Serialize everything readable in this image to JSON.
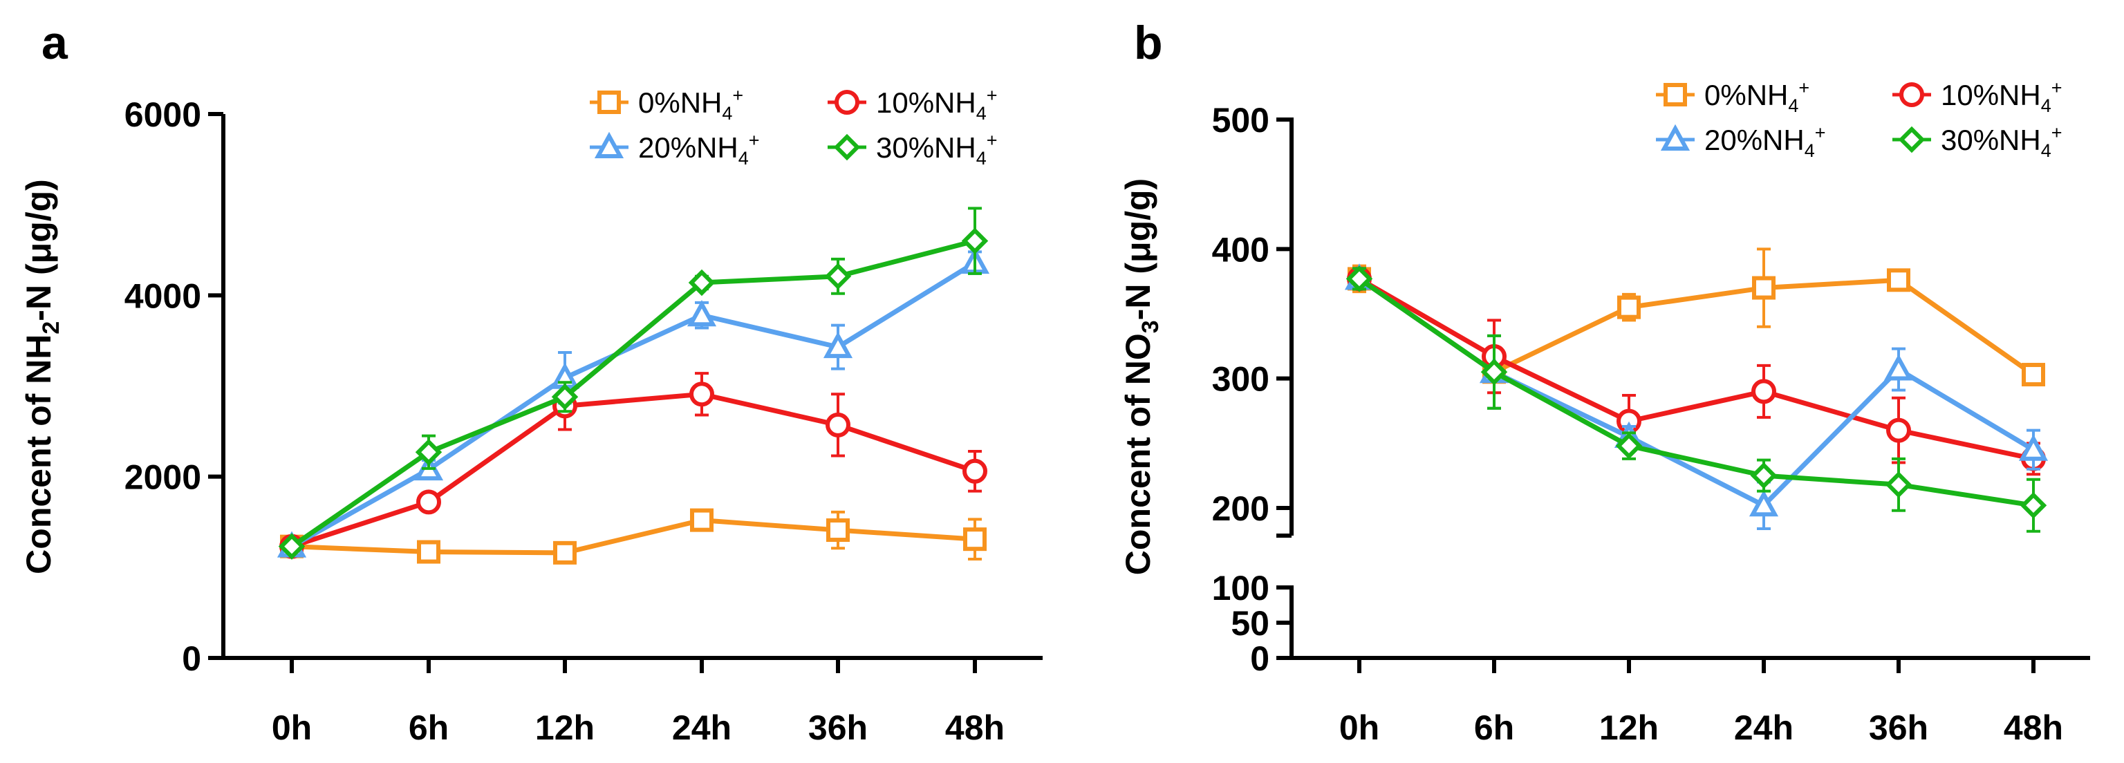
{
  "colors": {
    "0%NH4+": "#f7931e",
    "10%NH4+": "#ee1c1c",
    "20%NH4+": "#5aa2ef",
    "30%NH4+": "#18b418"
  },
  "legend_labels": {
    "s0": {
      "pre": "0%NH",
      "sub": "4",
      "sup": "+"
    },
    "s10": {
      "pre": "10%NH",
      "sub": "4",
      "sup": "+"
    },
    "s20": {
      "pre": "20%NH",
      "sub": "4",
      "sup": "+"
    },
    "s30": {
      "pre": "30%NH",
      "sub": "4",
      "sup": "+"
    }
  },
  "chart_data": [
    {
      "type": "line",
      "panel": "a",
      "ylabel": {
        "pre": "Concent of NH",
        "sub": "2",
        "post": "-N (μg/g)"
      },
      "categories": [
        "0h",
        "6h",
        "12h",
        "24h",
        "36h",
        "48h"
      ],
      "ylim": [
        0,
        6000
      ],
      "yticks": [
        "0",
        "2000",
        "4000",
        "6000"
      ],
      "legend_position": "top-right",
      "series": [
        {
          "name": "0%NH4+",
          "marker": "square",
          "values": [
            1230,
            1170,
            1160,
            1520,
            1410,
            1310
          ],
          "errors": [
            60,
            80,
            70,
            80,
            200,
            220
          ]
        },
        {
          "name": "10%NH4+",
          "marker": "circle",
          "values": [
            1230,
            1720,
            2780,
            2910,
            2570,
            2060
          ],
          "errors": [
            50,
            100,
            260,
            230,
            340,
            220
          ]
        },
        {
          "name": "20%NH4+",
          "marker": "triangle",
          "values": [
            1230,
            2080,
            3090,
            3780,
            3430,
            4360
          ],
          "errors": [
            50,
            100,
            280,
            140,
            240,
            120
          ]
        },
        {
          "name": "30%NH4+",
          "marker": "diamond",
          "values": [
            1230,
            2270,
            2880,
            4140,
            4210,
            4600
          ],
          "errors": [
            50,
            180,
            160,
            70,
            190,
            360
          ]
        }
      ]
    },
    {
      "type": "line",
      "panel": "b",
      "ylabel": {
        "pre": "Concent of NO",
        "sub": "3",
        "post": "-N (μg/g)"
      },
      "categories": [
        "0h",
        "6h",
        "12h",
        "24h",
        "36h",
        "48h"
      ],
      "axis_break": {
        "lower": [
          0,
          100
        ],
        "upper": [
          190,
          500
        ]
      },
      "yticks_lower": [
        "0",
        "50",
        "100"
      ],
      "yticks_upper": [
        "200",
        "300",
        "400",
        "500"
      ],
      "legend_position": "top-right",
      "series": [
        {
          "name": "0%NH4+",
          "marker": "square",
          "values": [
            377,
            305,
            355,
            370,
            376,
            303
          ],
          "errors": [
            10,
            28,
            10,
            30,
            6,
            8
          ]
        },
        {
          "name": "10%NH4+",
          "marker": "circle",
          "values": [
            377,
            317,
            267,
            290,
            260,
            238
          ],
          "errors": [
            8,
            28,
            20,
            20,
            25,
            12
          ]
        },
        {
          "name": "20%NH4+",
          "marker": "triangle",
          "values": [
            377,
            305,
            255,
            202,
            307,
            245
          ],
          "errors": [
            8,
            28,
            8,
            18,
            16,
            15
          ]
        },
        {
          "name": "30%NH4+",
          "marker": "diamond",
          "values": [
            377,
            305,
            248,
            225,
            218,
            202
          ],
          "errors": [
            8,
            28,
            10,
            12,
            20,
            20
          ]
        }
      ]
    }
  ]
}
